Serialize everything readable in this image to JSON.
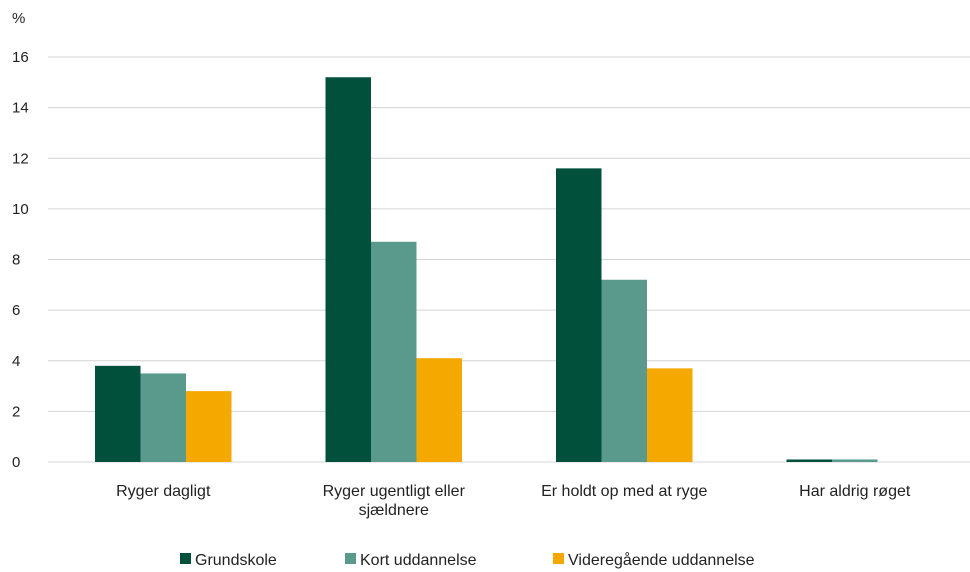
{
  "chart_data": {
    "type": "bar",
    "unit_label": "%",
    "categories": [
      [
        "Ryger dagligt"
      ],
      [
        "Ryger ugentligt eller",
        "sjældnere"
      ],
      [
        "Er holdt op med at ryge"
      ],
      [
        "Har aldrig røget"
      ]
    ],
    "series": [
      {
        "name": "Grundskole",
        "color": "#00503c",
        "values": [
          3.8,
          15.2,
          11.6,
          0.1
        ]
      },
      {
        "name": "Kort uddannelse",
        "color": "#5a9a8c",
        "values": [
          3.5,
          8.7,
          7.2,
          0.1
        ]
      },
      {
        "name": "Videregående uddannelse",
        "color": "#f5a800",
        "values": [
          2.8,
          4.1,
          3.7,
          0.0
        ]
      }
    ],
    "yticks": [
      0,
      2,
      4,
      6,
      8,
      10,
      12,
      14,
      16
    ],
    "ylim": [
      0,
      16
    ],
    "grid": true,
    "legend": "bottom-center"
  }
}
